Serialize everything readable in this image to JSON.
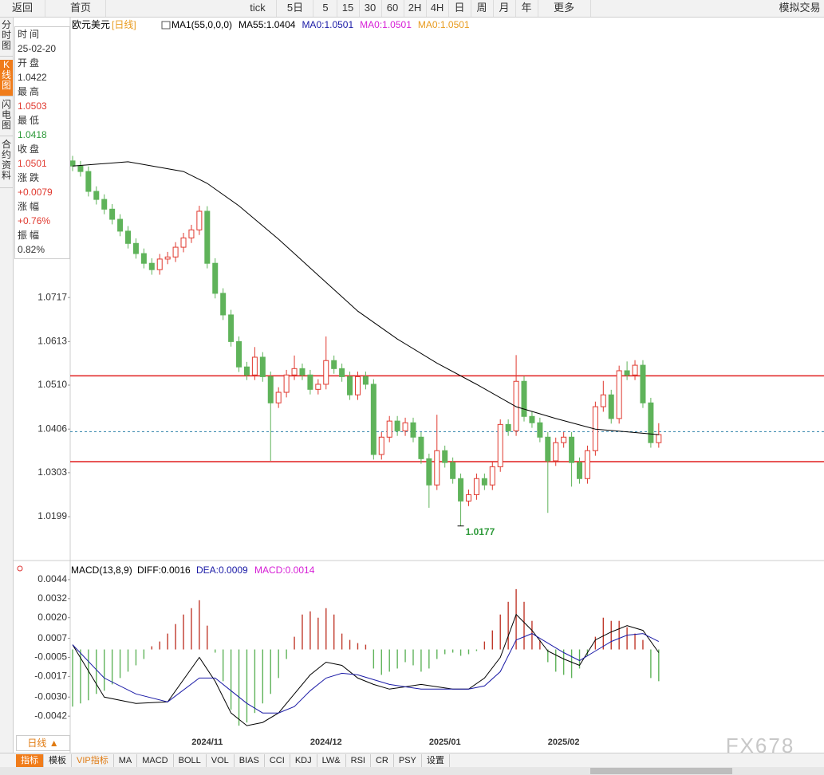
{
  "toolbar": {
    "items": [
      "返回",
      "首页",
      "tick",
      "5日",
      "5",
      "15",
      "30",
      "60",
      "2H",
      "4H",
      "日",
      "周",
      "月",
      "年",
      "更多",
      "模拟交易"
    ]
  },
  "side_tabs": [
    "分时图",
    "K线图",
    "闪电图",
    "合约资料"
  ],
  "info": [
    {
      "label": "时间",
      "value": "25-02-20",
      "color": "#333333"
    },
    {
      "label": "开盘",
      "value": "1.0422",
      "color": "#333333"
    },
    {
      "label": "最高",
      "value": "1.0503",
      "color": "#e0392f"
    },
    {
      "label": "最低",
      "value": "1.0418",
      "color": "#2e9a3a"
    },
    {
      "label": "收盘",
      "value": "1.0501",
      "color": "#e0392f"
    },
    {
      "label": "涨跌",
      "value": "+0.0079",
      "color": "#e0392f"
    },
    {
      "label": "涨幅",
      "value": "+0.76%",
      "color": "#e0392f"
    },
    {
      "label": "振幅",
      "value": "0.82%",
      "color": "#333333"
    }
  ],
  "bottom": {
    "period": "日线 ▲",
    "tabs": [
      "指标",
      "模板",
      "VIP指标",
      "MA",
      "MACD",
      "BOLL",
      "VOL",
      "BIAS",
      "CCI",
      "KDJ",
      "LW&",
      "RSI",
      "CR",
      "PSY",
      "设置"
    ],
    "watermark": "FX678"
  },
  "chart_data": {
    "type": "candlestick",
    "title": "欧元美元",
    "period": "[日线]",
    "legend": [
      {
        "text": "MA1(55,0,0,0)",
        "color": "#000000"
      },
      {
        "text": "MA55:1.0404",
        "color": "#000000"
      },
      {
        "text": "MA0:1.0501",
        "color": "#1a1aa6"
      },
      {
        "text": "MA0:1.0501",
        "color": "#d61ed6"
      },
      {
        "text": "MA0:1.0501",
        "color": "#e89a1c"
      }
    ],
    "categories": [
      null,
      null,
      null,
      null,
      null,
      null,
      null,
      null,
      null,
      null,
      null,
      null,
      null,
      null,
      null,
      null,
      null,
      "2024/11",
      null,
      null,
      null,
      null,
      null,
      null,
      null,
      null,
      null,
      null,
      null,
      null,
      null,
      null,
      "2024/12",
      null,
      null,
      null,
      null,
      null,
      null,
      null,
      null,
      null,
      null,
      null,
      null,
      null,
      null,
      "2025/01",
      null,
      null,
      null,
      null,
      null,
      null,
      null,
      null,
      null,
      null,
      null,
      null,
      null,
      null,
      "2025/02",
      null,
      null,
      null,
      null,
      null,
      null,
      null,
      null,
      null,
      null,
      null,
      null
    ],
    "open": [
      1.104,
      1.1028,
      1.1015,
      1.0968,
      1.0949,
      1.0926,
      1.0902,
      1.0874,
      1.0845,
      1.0821,
      1.0798,
      1.0783,
      1.0808,
      1.0813,
      1.0836,
      1.0858,
      1.0877,
      1.0921,
      1.0798,
      1.0727,
      1.0676,
      1.0613,
      1.0553,
      1.0534,
      1.0576,
      1.053,
      1.0468,
      1.0493,
      1.0534,
      1.0549,
      1.0534,
      1.05,
      1.0512,
      1.0568,
      1.0549,
      1.053,
      1.0487,
      1.053,
      1.0512,
      1.0346,
      1.0387,
      1.0425,
      1.0402,
      1.0421,
      1.0387,
      1.0336,
      1.0274,
      1.0355,
      1.0327,
      1.0289,
      1.0236,
      1.0251,
      1.0289,
      1.0274,
      1.0317,
      1.0417,
      1.0402,
      1.0519,
      1.0436,
      1.0421,
      1.0387,
      1.0331,
      1.0374,
      1.0387,
      1.0327,
      1.0289,
      1.0355,
      1.0459,
      1.0487,
      1.0431,
      1.0544,
      1.0534,
      1.0557,
      1.0468,
      1.0374
    ],
    "high": [
      1.1052,
      1.104,
      1.1027,
      1.098,
      1.0961,
      1.0938,
      1.0914,
      1.0886,
      1.0857,
      1.0833,
      1.081,
      1.082,
      1.0825,
      1.0848,
      1.087,
      1.0889,
      1.0934,
      1.0933,
      1.081,
      1.0739,
      1.0688,
      1.0625,
      1.0565,
      1.06,
      1.0588,
      1.0542,
      1.0505,
      1.0546,
      1.058,
      1.0561,
      1.0546,
      1.0524,
      1.0625,
      1.058,
      1.0561,
      1.0542,
      1.0542,
      1.0542,
      1.0524,
      1.0399,
      1.0437,
      1.0437,
      1.0433,
      1.0433,
      1.0399,
      1.0348,
      1.044,
      1.0367,
      1.0339,
      1.0301,
      1.0263,
      1.0301,
      1.0301,
      1.0329,
      1.0429,
      1.0429,
      1.0581,
      1.0531,
      1.0448,
      1.0433,
      1.0399,
      1.0386,
      1.0399,
      1.0399,
      1.0339,
      1.0367,
      1.0471,
      1.052,
      1.0499,
      1.0556,
      1.0566,
      1.0569,
      1.0569,
      1.048,
      1.042
    ],
    "low": [
      1.1016,
      1.1003,
      1.0956,
      1.0937,
      1.0914,
      1.089,
      1.0862,
      1.0833,
      1.0809,
      1.0786,
      1.0771,
      1.0771,
      1.0796,
      1.0801,
      1.0824,
      1.0846,
      1.0865,
      1.0786,
      1.0715,
      1.0664,
      1.0601,
      1.0541,
      1.0522,
      1.0522,
      1.0518,
      1.0331,
      1.0456,
      1.0481,
      1.0522,
      1.0522,
      1.0488,
      1.0488,
      1.05,
      1.0537,
      1.0518,
      1.0475,
      1.0475,
      1.05,
      1.0334,
      1.0334,
      1.0375,
      1.039,
      1.039,
      1.0375,
      1.0324,
      1.022,
      1.0262,
      1.0315,
      1.0277,
      1.0177,
      1.0224,
      1.0239,
      1.0262,
      1.0262,
      1.0305,
      1.039,
      1.039,
      1.0424,
      1.0409,
      1.0375,
      1.0208,
      1.0319,
      1.0362,
      1.027,
      1.0277,
      1.0277,
      1.0343,
      1.0447,
      1.0419,
      1.0419,
      1.0522,
      1.0522,
      1.0456,
      1.0362,
      1.0362
    ],
    "close": [
      1.1028,
      1.1015,
      1.0968,
      1.0949,
      1.0926,
      1.0902,
      1.0874,
      1.0845,
      1.0821,
      1.0798,
      1.0783,
      1.0808,
      1.0813,
      1.0836,
      1.0858,
      1.0877,
      1.0921,
      1.0798,
      1.0727,
      1.0676,
      1.0613,
      1.0553,
      1.0534,
      1.0576,
      1.053,
      1.0468,
      1.0493,
      1.0534,
      1.0549,
      1.0534,
      1.05,
      1.0512,
      1.0568,
      1.0549,
      1.053,
      1.0487,
      1.053,
      1.0512,
      1.0346,
      1.0387,
      1.0425,
      1.0402,
      1.0421,
      1.0387,
      1.0336,
      1.0274,
      1.0355,
      1.0327,
      1.0289,
      1.0236,
      1.0251,
      1.0289,
      1.0274,
      1.0317,
      1.0417,
      1.0402,
      1.0519,
      1.0436,
      1.0421,
      1.0387,
      1.0331,
      1.0374,
      1.0387,
      1.0327,
      1.0289,
      1.0355,
      1.0459,
      1.0487,
      1.0431,
      1.0544,
      1.0534,
      1.0557,
      1.0468,
      1.0374,
      1.0393
    ],
    "up_color": "#e0392f",
    "down_color": "#5fb35a",
    "ylim": [
      1.0101,
      1.1379
    ],
    "yticks": [
      1.0199,
      1.0303,
      1.0406,
      {
        "value": 1.051,
        "label": "1.0510"
      },
      1.0613,
      1.0717
    ],
    "ma": {
      "color": "#000000",
      "x": [
        0,
        7,
        14,
        17,
        21,
        26,
        31,
        36,
        41,
        46,
        51,
        56,
        61,
        66,
        74
      ],
      "values": [
        1.1028,
        1.1038,
        1.1015,
        1.0987,
        1.0934,
        1.0855,
        1.077,
        1.0685,
        1.0619,
        1.0562,
        1.0512,
        1.0459,
        1.0431,
        1.0406,
        1.0393
      ]
    },
    "hlines": {
      "values": [
        1.0532,
        1.0329
      ],
      "color": "#e01e1e"
    },
    "last_price": {
      "value": 1.04,
      "color": "#2a7fa8"
    },
    "min_index": 49,
    "macd": {
      "title": "MACD(13,8,9)",
      "diff_label": "DIFF:0.0016",
      "dea_label": "DEA:0.0009",
      "macd_label": "MACD:0.0014",
      "macd_label_color": "#d61ed6",
      "dea_label_color": "#1a1aa6",
      "ylim": [
        -0.0063,
        0.0054
      ],
      "yticks": [
        0.0044,
        0.0032,
        {
          "value": 0.002,
          "label": "0.0020"
        },
        0.0007,
        -0.0005,
        -0.0017,
        {
          "value": -0.003,
          "label": "-0.0030"
        },
        -0.0042
      ],
      "hist": {
        "up_color": "#c0392b",
        "down_color": "#5fb35a",
        "values": [
          -0.0036,
          -0.0034,
          -0.0032,
          -0.0028,
          -0.0026,
          -0.0022,
          -0.0018,
          -0.0014,
          -0.001,
          -0.0006,
          0.0002,
          0.0005,
          0.001,
          0.0016,
          0.0022,
          0.0026,
          0.0031,
          0.0015,
          -0.0002,
          -0.002,
          -0.0038,
          -0.0048,
          -0.0046,
          -0.004,
          -0.0034,
          -0.0028,
          -0.0018,
          -0.0006,
          0.0008,
          0.0022,
          0.0024,
          0.002,
          0.0026,
          0.0022,
          0.001,
          0.0006,
          0.0004,
          0.0003,
          -0.0012,
          -0.0016,
          -0.0014,
          -0.0012,
          -0.0008,
          -0.001,
          -0.0014,
          -0.0012,
          -0.0006,
          -0.0003,
          -0.0002,
          -0.0004,
          -0.0003,
          -0.0001,
          0.0005,
          0.0012,
          0.0022,
          0.003,
          0.0038,
          0.003,
          0.0018,
          0.0006,
          -0.0008,
          -0.0014,
          -0.0016,
          -0.0018,
          -0.0012,
          -0.0004,
          0.0008,
          0.002,
          0.0018,
          0.0018,
          0.0014,
          0.001,
          0.0006,
          -0.0018,
          -0.002
        ]
      },
      "diff": {
        "color": "#000000",
        "x": [
          0,
          4,
          8,
          12,
          16,
          18,
          20,
          22,
          24,
          26,
          28,
          30,
          32,
          34,
          36,
          38,
          40,
          44,
          48,
          50,
          52,
          54,
          56,
          58,
          60,
          62,
          64,
          66,
          68,
          70,
          72,
          74
        ],
        "values": [
          0.0003,
          -0.003,
          -0.0034,
          -0.0033,
          -0.0005,
          -0.002,
          -0.004,
          -0.0048,
          -0.0046,
          -0.004,
          -0.0028,
          -0.0016,
          -0.0008,
          -0.001,
          -0.0018,
          -0.0022,
          -0.0025,
          -0.0022,
          -0.0025,
          -0.0025,
          -0.0018,
          -0.0005,
          0.0022,
          0.0012,
          -0.0001,
          -0.0006,
          -0.001,
          0.0006,
          0.0011,
          0.0015,
          0.0012,
          -0.0002
        ]
      },
      "dea": {
        "color": "#1a1aa6",
        "x": [
          0,
          4,
          8,
          12,
          16,
          18,
          20,
          22,
          24,
          26,
          28,
          30,
          32,
          34,
          36,
          38,
          40,
          44,
          48,
          50,
          52,
          54,
          56,
          58,
          60,
          62,
          64,
          66,
          68,
          70,
          72,
          74
        ],
        "values": [
          0.0003,
          -0.0018,
          -0.0028,
          -0.0033,
          -0.0018,
          -0.0018,
          -0.0026,
          -0.0034,
          -0.004,
          -0.004,
          -0.0036,
          -0.0026,
          -0.0018,
          -0.0015,
          -0.0016,
          -0.0019,
          -0.0022,
          -0.0025,
          -0.0025,
          -0.0025,
          -0.0023,
          -0.0014,
          0.0006,
          0.001,
          0.0004,
          -0.0002,
          -0.0007,
          -0.0001,
          0.0005,
          0.0009,
          0.001,
          0.0005
        ]
      }
    }
  }
}
